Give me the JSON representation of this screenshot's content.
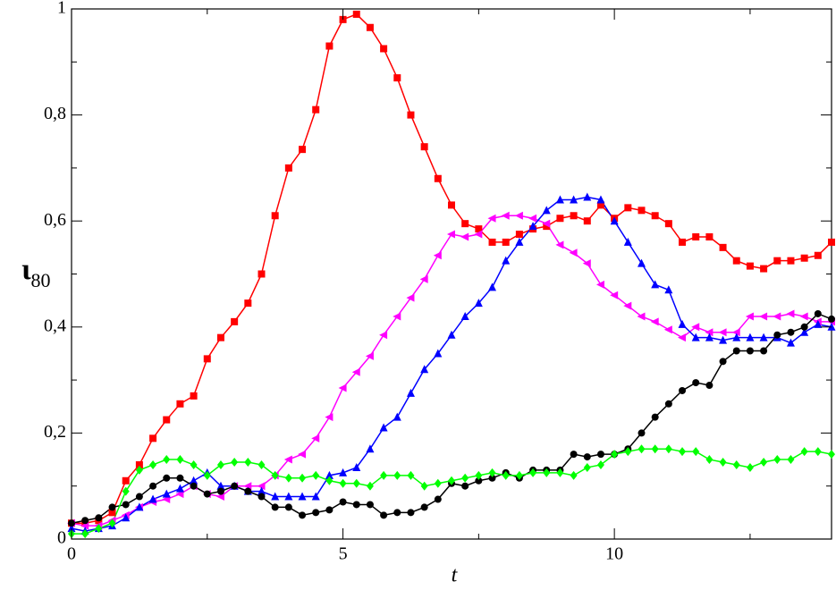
{
  "chart_data": {
    "type": "line",
    "xlabel": "t",
    "ylabel": "ι",
    "ylabel_sub": "80",
    "x": [
      0,
      0.25,
      0.5,
      0.75,
      1,
      1.25,
      1.5,
      1.75,
      2,
      2.25,
      2.5,
      2.75,
      3,
      3.25,
      3.5,
      3.75,
      4,
      4.25,
      4.5,
      4.75,
      5,
      5.25,
      5.5,
      5.75,
      6,
      6.25,
      6.5,
      6.75,
      7,
      7.25,
      7.5,
      7.75,
      8,
      8.25,
      8.5,
      8.75,
      9,
      9.25,
      9.5,
      9.75,
      10,
      10.25,
      10.5,
      10.75,
      11,
      11.25,
      11.5,
      11.75,
      12,
      12.25,
      12.5,
      12.75,
      13,
      13.25,
      13.5,
      13.75,
      14
    ],
    "series": [
      {
        "color": "#ff0000",
        "marker": "square",
        "values": [
          0.03,
          0.03,
          0.035,
          0.05,
          0.11,
          0.14,
          0.19,
          0.225,
          0.255,
          0.27,
          0.34,
          0.38,
          0.41,
          0.445,
          0.5,
          0.61,
          0.7,
          0.735,
          0.81,
          0.93,
          0.98,
          0.99,
          0.965,
          0.925,
          0.87,
          0.8,
          0.74,
          0.68,
          0.63,
          0.595,
          0.585,
          0.56,
          0.56,
          0.575,
          0.585,
          0.59,
          0.605,
          0.61,
          0.6,
          0.63,
          0.605,
          0.625,
          0.62,
          0.61,
          0.595,
          0.56,
          0.57,
          0.57,
          0.55,
          0.525,
          0.515,
          0.51,
          0.525,
          0.525,
          0.53,
          0.535,
          0.56
        ]
      },
      {
        "color": "#ff00ff",
        "marker": "triangle-left",
        "values": [
          0.03,
          0.025,
          0.025,
          0.035,
          0.045,
          0.06,
          0.07,
          0.075,
          0.085,
          0.1,
          0.085,
          0.08,
          0.1,
          0.1,
          0.1,
          0.12,
          0.15,
          0.16,
          0.19,
          0.23,
          0.285,
          0.315,
          0.345,
          0.385,
          0.42,
          0.455,
          0.49,
          0.535,
          0.575,
          0.57,
          0.575,
          0.605,
          0.61,
          0.61,
          0.605,
          0.595,
          0.555,
          0.54,
          0.52,
          0.48,
          0.46,
          0.44,
          0.42,
          0.41,
          0.395,
          0.38,
          0.4,
          0.39,
          0.39,
          0.39,
          0.42,
          0.42,
          0.42,
          0.425,
          0.42,
          0.41,
          0.41
        ]
      },
      {
        "color": "#0000ff",
        "marker": "triangle-up",
        "values": [
          0.02,
          0.015,
          0.02,
          0.025,
          0.04,
          0.06,
          0.075,
          0.085,
          0.095,
          0.11,
          0.125,
          0.1,
          0.1,
          0.09,
          0.09,
          0.08,
          0.08,
          0.08,
          0.08,
          0.12,
          0.125,
          0.135,
          0.17,
          0.21,
          0.23,
          0.275,
          0.32,
          0.35,
          0.385,
          0.42,
          0.445,
          0.475,
          0.525,
          0.56,
          0.59,
          0.62,
          0.64,
          0.64,
          0.645,
          0.64,
          0.6,
          0.56,
          0.52,
          0.48,
          0.47,
          0.405,
          0.38,
          0.38,
          0.375,
          0.38,
          0.38,
          0.38,
          0.38,
          0.37,
          0.39,
          0.405,
          0.4
        ]
      },
      {
        "color": "#000000",
        "marker": "circle",
        "values": [
          0.03,
          0.035,
          0.04,
          0.06,
          0.065,
          0.08,
          0.1,
          0.115,
          0.115,
          0.1,
          0.085,
          0.09,
          0.1,
          0.09,
          0.08,
          0.06,
          0.06,
          0.045,
          0.05,
          0.055,
          0.07,
          0.065,
          0.065,
          0.045,
          0.05,
          0.05,
          0.06,
          0.075,
          0.105,
          0.1,
          0.11,
          0.115,
          0.125,
          0.115,
          0.13,
          0.13,
          0.13,
          0.16,
          0.155,
          0.16,
          0.16,
          0.17,
          0.2,
          0.23,
          0.255,
          0.28,
          0.295,
          0.29,
          0.335,
          0.355,
          0.355,
          0.355,
          0.385,
          0.39,
          0.4,
          0.425,
          0.415
        ]
      },
      {
        "color": "#00ff00",
        "marker": "diamond",
        "values": [
          0.01,
          0.01,
          0.02,
          0.03,
          0.09,
          0.13,
          0.14,
          0.15,
          0.15,
          0.14,
          0.12,
          0.14,
          0.145,
          0.145,
          0.14,
          0.12,
          0.115,
          0.115,
          0.12,
          0.11,
          0.105,
          0.105,
          0.1,
          0.12,
          0.12,
          0.12,
          0.1,
          0.105,
          0.11,
          0.115,
          0.12,
          0.125,
          0.12,
          0.12,
          0.125,
          0.125,
          0.125,
          0.12,
          0.135,
          0.14,
          0.16,
          0.165,
          0.17,
          0.17,
          0.17,
          0.165,
          0.165,
          0.15,
          0.145,
          0.14,
          0.135,
          0.145,
          0.15,
          0.15,
          0.165,
          0.165,
          0.16
        ]
      }
    ],
    "xlim": [
      0,
      14
    ],
    "ylim": [
      0,
      1
    ],
    "xticks": [
      0,
      5,
      10
    ],
    "xminorticks": [
      2.5,
      7.5,
      12.5
    ],
    "yticks": [
      0,
      {
        "value": 0.2,
        "label": "0,2"
      },
      {
        "value": 0.4,
        "label": "0,4"
      },
      {
        "value": 0.6,
        "label": "0,6"
      },
      {
        "value": 0.8,
        "label": "0,8"
      },
      1
    ],
    "yminorticks": [
      0.1,
      0.3,
      0.5,
      0.7,
      0.9
    ],
    "grid": false
  }
}
